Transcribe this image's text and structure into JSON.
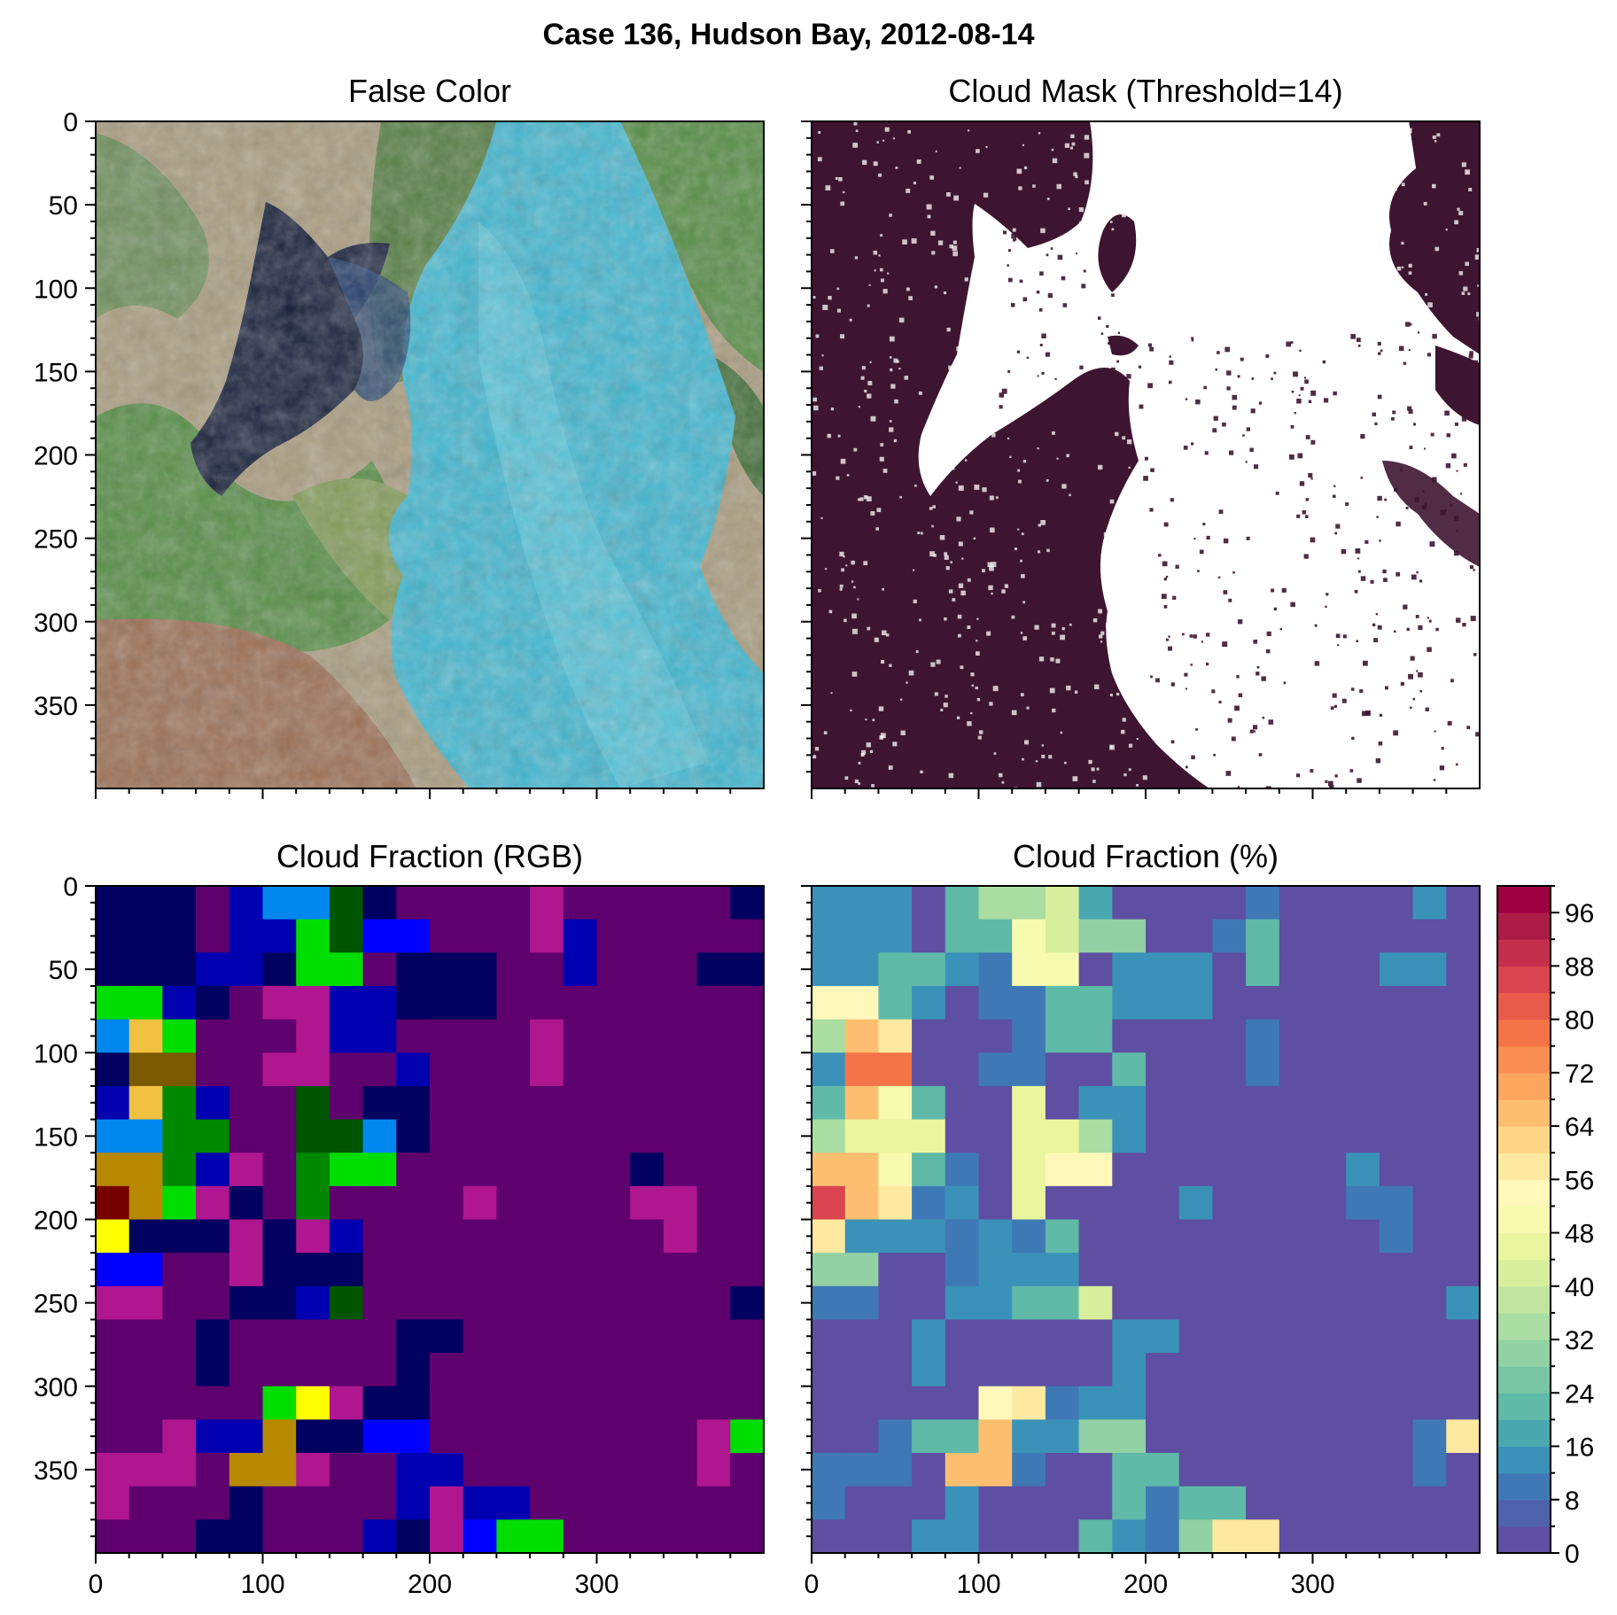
{
  "figure": {
    "title": "Case 136, Hudson Bay, 2012-08-14"
  },
  "colors": {
    "mask_cloud": "#3e1530",
    "mask_clear": "#ffffff",
    "fc_land_tan": "#a89a7a",
    "fc_land_green": "#4e8a3c",
    "fc_land_red": "#9a6b4e",
    "fc_water_dark": "#0a1430",
    "fc_ice": "#39b7d2"
  },
  "chart_data": [
    {
      "type": "image",
      "title": "False Color",
      "xlim": [
        0,
        400
      ],
      "ylim": [
        400,
        0
      ],
      "xticks": [
        0,
        100,
        200,
        300
      ],
      "yticks": [
        0,
        50,
        100,
        150,
        200,
        250,
        300,
        350
      ],
      "show_xticklabels": false,
      "show_yticklabels": true
    },
    {
      "type": "image",
      "title": "Cloud Mask (Threshold=14)",
      "xlim": [
        0,
        400
      ],
      "ylim": [
        400,
        0
      ],
      "xticks": [
        0,
        100,
        200,
        300
      ],
      "yticks": [
        0,
        50,
        100,
        150,
        200,
        250,
        300,
        350
      ],
      "show_xticklabels": false,
      "show_yticklabels": false
    },
    {
      "type": "heatmap",
      "title": "Cloud Fraction (RGB)",
      "xlim": [
        0,
        400
      ],
      "ylim": [
        400,
        0
      ],
      "grid_size": 20,
      "xticks": [
        0,
        100,
        200,
        300
      ],
      "yticks": [
        0,
        50,
        100,
        150,
        200,
        250,
        300,
        350
      ],
      "show_xticklabels": true,
      "show_yticklabels": true,
      "palette": [
        "#5e006e",
        "#000060",
        "#0000b0",
        "#0000ff",
        "#0088ee",
        "#00dd00",
        "#008800",
        "#005500",
        "#b01690",
        "#f0c040",
        "#7a5a00",
        "#b88800",
        "#770000",
        "#ffff00"
      ],
      "values": [
        [
          1,
          1,
          1,
          0,
          2,
          4,
          4,
          7,
          1,
          0,
          0,
          0,
          0,
          8,
          0,
          0,
          0,
          0,
          0,
          1
        ],
        [
          1,
          1,
          1,
          0,
          2,
          2,
          5,
          7,
          3,
          3,
          0,
          0,
          0,
          8,
          2,
          0,
          0,
          0,
          0,
          0
        ],
        [
          1,
          1,
          1,
          2,
          2,
          1,
          5,
          5,
          0,
          1,
          1,
          1,
          0,
          0,
          2,
          0,
          0,
          0,
          1,
          1
        ],
        [
          5,
          5,
          2,
          1,
          0,
          8,
          8,
          2,
          2,
          1,
          1,
          1,
          0,
          0,
          0,
          0,
          0,
          0,
          0,
          0
        ],
        [
          4,
          9,
          5,
          0,
          0,
          0,
          8,
          2,
          2,
          0,
          0,
          0,
          0,
          8,
          0,
          0,
          0,
          0,
          0,
          0
        ],
        [
          1,
          10,
          10,
          0,
          0,
          8,
          8,
          0,
          0,
          2,
          0,
          0,
          0,
          8,
          0,
          0,
          0,
          0,
          0,
          0
        ],
        [
          2,
          9,
          6,
          2,
          0,
          0,
          7,
          0,
          1,
          1,
          0,
          0,
          0,
          0,
          0,
          0,
          0,
          0,
          0,
          0
        ],
        [
          4,
          4,
          6,
          6,
          0,
          0,
          7,
          7,
          4,
          1,
          0,
          0,
          0,
          0,
          0,
          0,
          0,
          0,
          0,
          0
        ],
        [
          11,
          11,
          6,
          2,
          8,
          0,
          6,
          5,
          5,
          0,
          0,
          0,
          0,
          0,
          0,
          0,
          1,
          0,
          0,
          0
        ],
        [
          12,
          11,
          5,
          8,
          1,
          0,
          6,
          0,
          0,
          0,
          0,
          8,
          0,
          0,
          0,
          0,
          8,
          8,
          0,
          0
        ],
        [
          13,
          1,
          1,
          1,
          8,
          1,
          8,
          2,
          0,
          0,
          0,
          0,
          0,
          0,
          0,
          0,
          0,
          8,
          0,
          0
        ],
        [
          3,
          3,
          0,
          0,
          8,
          1,
          1,
          1,
          0,
          0,
          0,
          0,
          0,
          0,
          0,
          0,
          0,
          0,
          0,
          0
        ],
        [
          8,
          8,
          0,
          0,
          1,
          1,
          2,
          7,
          0,
          0,
          0,
          0,
          0,
          0,
          0,
          0,
          0,
          0,
          0,
          1
        ],
        [
          0,
          0,
          0,
          1,
          0,
          0,
          0,
          0,
          0,
          1,
          1,
          0,
          0,
          0,
          0,
          0,
          0,
          0,
          0,
          0
        ],
        [
          0,
          0,
          0,
          1,
          0,
          0,
          0,
          0,
          0,
          1,
          0,
          0,
          0,
          0,
          0,
          0,
          0,
          0,
          0,
          0
        ],
        [
          0,
          0,
          0,
          0,
          0,
          5,
          13,
          8,
          1,
          1,
          0,
          0,
          0,
          0,
          0,
          0,
          0,
          0,
          0,
          0
        ],
        [
          0,
          0,
          8,
          2,
          2,
          11,
          1,
          1,
          3,
          3,
          0,
          0,
          0,
          0,
          0,
          0,
          0,
          0,
          8,
          5
        ],
        [
          8,
          8,
          8,
          0,
          11,
          11,
          8,
          0,
          0,
          2,
          2,
          0,
          0,
          0,
          0,
          0,
          0,
          0,
          8,
          0
        ],
        [
          8,
          0,
          0,
          0,
          1,
          0,
          0,
          0,
          0,
          2,
          8,
          2,
          2,
          0,
          0,
          0,
          0,
          0,
          0,
          0
        ],
        [
          0,
          0,
          0,
          1,
          1,
          0,
          0,
          0,
          2,
          1,
          8,
          3,
          5,
          5,
          0,
          0,
          0,
          0,
          0,
          0
        ]
      ]
    },
    {
      "type": "heatmap",
      "title": "Cloud Fraction (%)",
      "xlim": [
        0,
        400
      ],
      "ylim": [
        400,
        0
      ],
      "grid_size": 20,
      "xticks": [
        0,
        100,
        200,
        300
      ],
      "yticks": [
        0,
        50,
        100,
        150,
        200,
        250,
        300,
        350
      ],
      "show_xticklabels": true,
      "show_yticklabels": false,
      "colorbar": {
        "min": 0,
        "max": 100,
        "step": 4,
        "ticks": [
          0,
          8,
          16,
          24,
          32,
          40,
          48,
          56,
          64,
          72,
          80,
          88,
          96
        ],
        "colors": [
          "#5e4fa2",
          "#4f61aa",
          "#3f79b5",
          "#3b92b9",
          "#4aa9b0",
          "#5fbaa8",
          "#77c5a5",
          "#91d1a3",
          "#aadda2",
          "#c1e5a0",
          "#d7ef9c",
          "#e9f69e",
          "#f7fbb0",
          "#fef9ba",
          "#fee9a0",
          "#fed685",
          "#fdbf6f",
          "#fca65e",
          "#f98d52",
          "#f57447",
          "#e85b4a",
          "#d9444e",
          "#c4304c",
          "#ad1c48",
          "#9e0142"
        ]
      },
      "values": [
        [
          14,
          14,
          14,
          0,
          22,
          32,
          32,
          42,
          16,
          0,
          0,
          0,
          0,
          8,
          0,
          0,
          0,
          0,
          14,
          0
        ],
        [
          14,
          14,
          14,
          0,
          22,
          22,
          50,
          40,
          30,
          30,
          0,
          0,
          8,
          22,
          0,
          0,
          0,
          0,
          0,
          0
        ],
        [
          14,
          14,
          22,
          22,
          14,
          8,
          50,
          50,
          0,
          14,
          14,
          14,
          0,
          22,
          0,
          0,
          0,
          14,
          14,
          0
        ],
        [
          54,
          54,
          22,
          14,
          0,
          8,
          8,
          22,
          22,
          14,
          14,
          14,
          0,
          0,
          0,
          0,
          0,
          0,
          0,
          0
        ],
        [
          34,
          64,
          56,
          0,
          0,
          0,
          8,
          22,
          22,
          0,
          0,
          0,
          0,
          8,
          0,
          0,
          0,
          0,
          0,
          0
        ],
        [
          14,
          76,
          76,
          0,
          0,
          8,
          8,
          0,
          0,
          22,
          0,
          0,
          0,
          8,
          0,
          0,
          0,
          0,
          0,
          0
        ],
        [
          22,
          64,
          48,
          22,
          0,
          0,
          44,
          0,
          14,
          14,
          0,
          0,
          0,
          0,
          0,
          0,
          0,
          0,
          0,
          0
        ],
        [
          32,
          44,
          44,
          44,
          0,
          0,
          44,
          44,
          32,
          14,
          0,
          0,
          0,
          0,
          0,
          0,
          0,
          0,
          0,
          0
        ],
        [
          66,
          66,
          48,
          22,
          8,
          0,
          46,
          54,
          54,
          0,
          0,
          0,
          0,
          0,
          0,
          0,
          14,
          0,
          0,
          0
        ],
        [
          84,
          66,
          56,
          8,
          14,
          0,
          46,
          0,
          0,
          0,
          0,
          14,
          0,
          0,
          0,
          0,
          8,
          8,
          0,
          0
        ],
        [
          56,
          14,
          14,
          14,
          8,
          14,
          8,
          22,
          0,
          0,
          0,
          0,
          0,
          0,
          0,
          0,
          0,
          8,
          0,
          0
        ],
        [
          30,
          30,
          0,
          0,
          8,
          14,
          14,
          14,
          0,
          0,
          0,
          0,
          0,
          0,
          0,
          0,
          0,
          0,
          0,
          0
        ],
        [
          8,
          8,
          0,
          0,
          14,
          14,
          22,
          22,
          42,
          0,
          0,
          0,
          0,
          0,
          0,
          0,
          0,
          0,
          0,
          14
        ],
        [
          0,
          0,
          0,
          14,
          0,
          0,
          0,
          0,
          0,
          14,
          14,
          0,
          0,
          0,
          0,
          0,
          0,
          0,
          0,
          0
        ],
        [
          0,
          0,
          0,
          14,
          0,
          0,
          0,
          0,
          0,
          14,
          0,
          0,
          0,
          0,
          0,
          0,
          0,
          0,
          0,
          0
        ],
        [
          0,
          0,
          0,
          0,
          0,
          54,
          56,
          8,
          14,
          14,
          0,
          0,
          0,
          0,
          0,
          0,
          0,
          0,
          0,
          0
        ],
        [
          0,
          0,
          8,
          22,
          22,
          66,
          14,
          14,
          30,
          30,
          0,
          0,
          0,
          0,
          0,
          0,
          0,
          0,
          8,
          56
        ],
        [
          8,
          8,
          8,
          0,
          66,
          66,
          8,
          0,
          0,
          22,
          22,
          0,
          0,
          0,
          0,
          0,
          0,
          0,
          8,
          0
        ],
        [
          8,
          0,
          0,
          0,
          14,
          0,
          0,
          0,
          0,
          22,
          8,
          22,
          22,
          0,
          0,
          0,
          0,
          0,
          0,
          0
        ],
        [
          0,
          0,
          0,
          14,
          14,
          0,
          0,
          0,
          22,
          14,
          8,
          30,
          56,
          56,
          0,
          0,
          0,
          0,
          0,
          0
        ]
      ]
    }
  ]
}
